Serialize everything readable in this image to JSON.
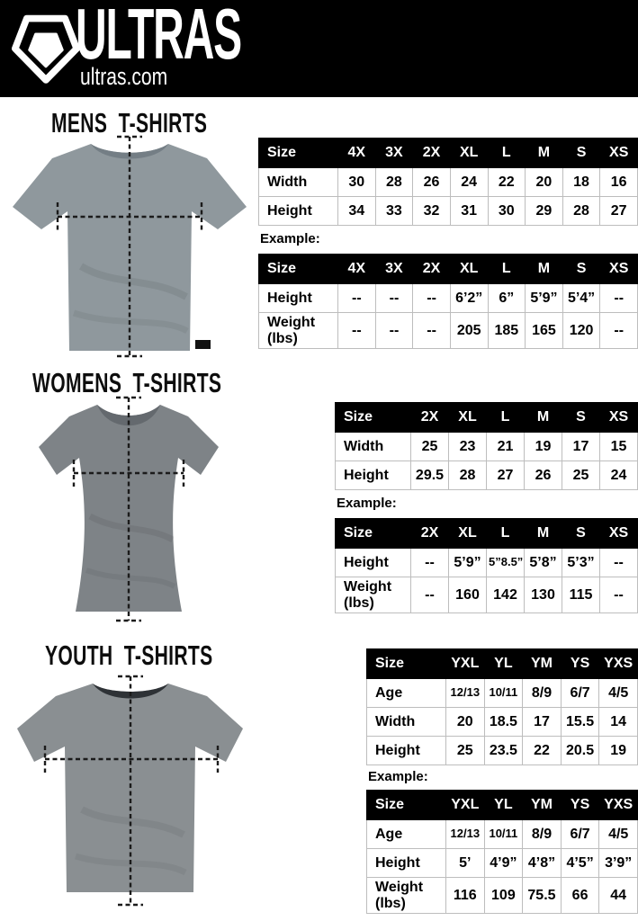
{
  "theme": {
    "header_bg": "#000000",
    "header_fg": "#ffffff",
    "grid_color": "#bdbdbd",
    "text_color": "#000000",
    "line_color": "#1b1b1b"
  },
  "header": {
    "brand": "ULTRAS",
    "site": "ultras.com",
    "logo_icon": "pentagon-shield-icon"
  },
  "sections": [
    {
      "id": "mens",
      "heading": "MENS T-SHIRTS",
      "shirt_color": "#8f989d",
      "collar_color": "#747e85",
      "example_label": "Example:",
      "size_table": {
        "header": [
          "Size",
          "4X",
          "3X",
          "2X",
          "XL",
          "L",
          "M",
          "S",
          "XS"
        ],
        "rows": [
          {
            "label": "Width",
            "values": [
              "30",
              "28",
              "26",
              "24",
              "22",
              "20",
              "18",
              "16"
            ]
          },
          {
            "label": "Height",
            "values": [
              "34",
              "33",
              "32",
              "31",
              "30",
              "29",
              "28",
              "27"
            ]
          }
        ]
      },
      "example_table": {
        "header": [
          "Size",
          "4X",
          "3X",
          "2X",
          "XL",
          "L",
          "M",
          "S",
          "XS"
        ],
        "rows": [
          {
            "label": "Height",
            "values": [
              "--",
              "--",
              "--",
              "6’2”",
              "6”",
              "5’9”",
              "5’4”",
              "--"
            ]
          },
          {
            "label": "Weight (lbs)",
            "values": [
              "--",
              "--",
              "--",
              "205",
              "185",
              "165",
              "120",
              "--"
            ]
          }
        ]
      }
    },
    {
      "id": "womens",
      "heading": "WOMENS T-SHIRTS",
      "shirt_color": "#7e8387",
      "collar_color": "#64696e",
      "example_label": "Example:",
      "size_table": {
        "header": [
          "Size",
          "2X",
          "XL",
          "L",
          "M",
          "S",
          "XS"
        ],
        "rows": [
          {
            "label": "Width",
            "values": [
              "25",
              "23",
              "21",
              "19",
              "17",
              "15"
            ]
          },
          {
            "label": "Height",
            "values": [
              "29.5",
              "28",
              "27",
              "26",
              "25",
              "24"
            ]
          }
        ]
      },
      "example_table": {
        "header": [
          "Size",
          "2X",
          "XL",
          "L",
          "M",
          "S",
          "XS"
        ],
        "rows": [
          {
            "label": "Height",
            "values": [
              "--",
              "5’9”",
              "5”8.5”",
              "5’8”",
              "5’3”",
              "--"
            ]
          },
          {
            "label": "Weight (lbs)",
            "values": [
              "--",
              "160",
              "142",
              "130",
              "115",
              "--"
            ]
          }
        ]
      }
    },
    {
      "id": "youth",
      "heading": "YOUTH T-SHIRTS",
      "shirt_color": "#8a8f92",
      "collar_color": "#2e3236",
      "example_label": "Example:",
      "size_table": {
        "header": [
          "Size",
          "YXL",
          "YL",
          "YM",
          "YS",
          "YXS"
        ],
        "rows": [
          {
            "label": "Age",
            "values": [
              "12/13",
              "10/11",
              "8/9",
              "6/7",
              "4/5"
            ]
          },
          {
            "label": "Width",
            "values": [
              "20",
              "18.5",
              "17",
              "15.5",
              "14"
            ]
          },
          {
            "label": "Height",
            "values": [
              "25",
              "23.5",
              "22",
              "20.5",
              "19"
            ]
          }
        ]
      },
      "example_table": {
        "header": [
          "Size",
          "YXL",
          "YL",
          "YM",
          "YS",
          "YXS"
        ],
        "rows": [
          {
            "label": "Age",
            "values": [
              "12/13",
              "10/11",
              "8/9",
              "6/7",
              "4/5"
            ]
          },
          {
            "label": "Height",
            "values": [
              "5’",
              "4’9”",
              "4’8”",
              "4’5”",
              "3’9”"
            ]
          },
          {
            "label": "Weight (lbs)",
            "values": [
              "116",
              "109",
              "75.5",
              "66",
              "44"
            ]
          }
        ]
      }
    }
  ]
}
